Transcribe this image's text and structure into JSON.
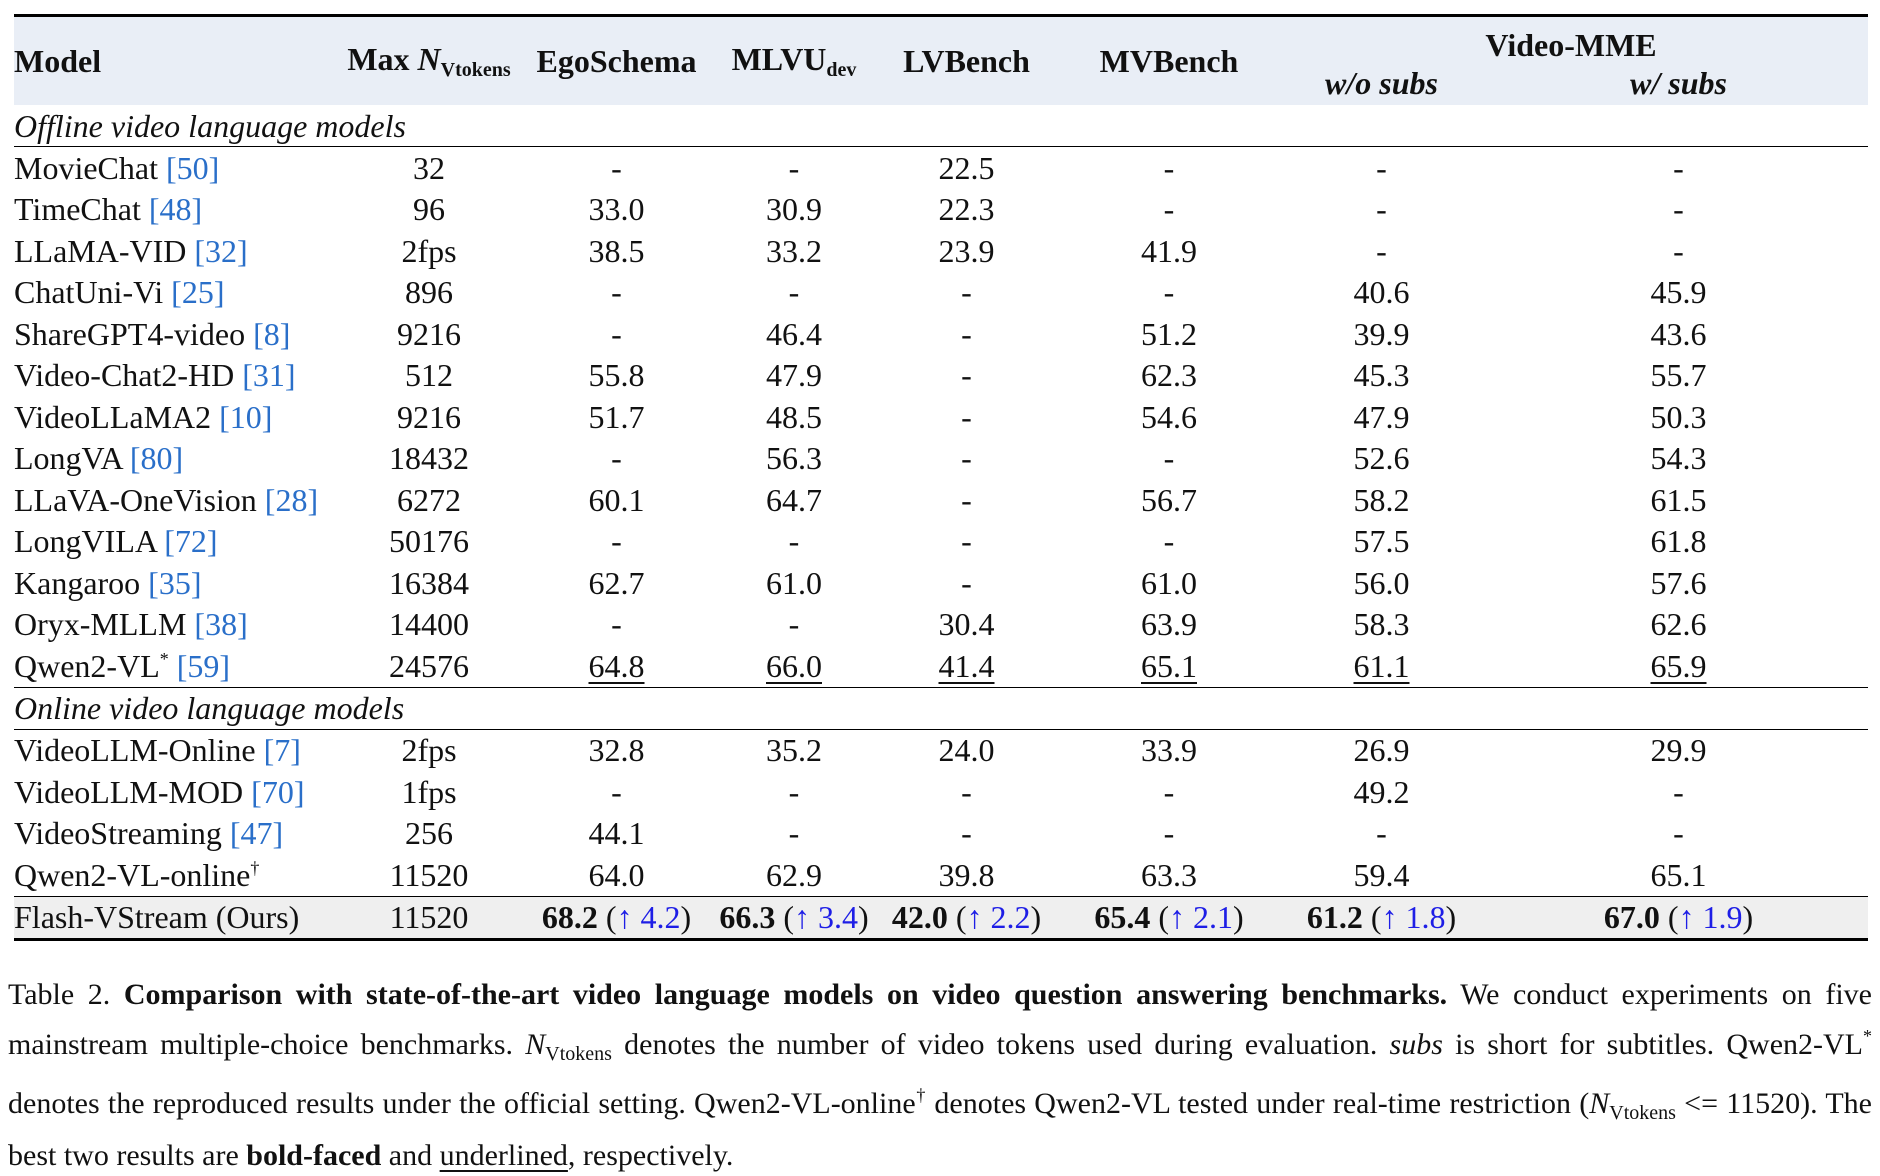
{
  "table": {
    "headers": {
      "model": "Model",
      "max_tokens_prefix": "Max ",
      "n": "N",
      "vtokens": "Vtokens",
      "egoschema": "EgoSchema",
      "mlvu": "MLVU",
      "mlvu_sub": "dev",
      "lvbench": "LVBench",
      "mvbench": "MVBench",
      "videomme": "Video-MME",
      "wo_subs": "w/o subs",
      "w_subs": "w/ subs"
    },
    "sections": [
      {
        "title": "Offline video language models",
        "rows": [
          {
            "name": "MovieChat ",
            "cite": "[50]",
            "sup": "",
            "tokens": "32",
            "ego": "-",
            "mlvu": "-",
            "lvb": "22.5",
            "mvb": "-",
            "wo": "-",
            "w": "-"
          },
          {
            "name": "TimeChat ",
            "cite": "[48]",
            "sup": "",
            "tokens": "96",
            "ego": "33.0",
            "mlvu": "30.9",
            "lvb": "22.3",
            "mvb": "-",
            "wo": "-",
            "w": "-"
          },
          {
            "name": "LLaMA-VID ",
            "cite": "[32]",
            "sup": "",
            "tokens": "2fps",
            "ego": "38.5",
            "mlvu": "33.2",
            "lvb": "23.9",
            "mvb": "41.9",
            "wo": "-",
            "w": "-"
          },
          {
            "name": "ChatUni-Vi ",
            "cite": "[25]",
            "sup": "",
            "tokens": "896",
            "ego": "-",
            "mlvu": "-",
            "lvb": "-",
            "mvb": "-",
            "wo": "40.6",
            "w": "45.9"
          },
          {
            "name": "ShareGPT4-video ",
            "cite": "[8]",
            "sup": "",
            "tokens": "9216",
            "ego": "-",
            "mlvu": "46.4",
            "lvb": "-",
            "mvb": "51.2",
            "wo": "39.9",
            "w": "43.6"
          },
          {
            "name": "Video-Chat2-HD ",
            "cite": "[31]",
            "sup": "",
            "tokens": "512",
            "ego": "55.8",
            "mlvu": "47.9",
            "lvb": "-",
            "mvb": "62.3",
            "wo": "45.3",
            "w": "55.7"
          },
          {
            "name": "VideoLLaMA2 ",
            "cite": "[10]",
            "sup": "",
            "tokens": "9216",
            "ego": "51.7",
            "mlvu": "48.5",
            "lvb": "-",
            "mvb": "54.6",
            "wo": "47.9",
            "w": "50.3"
          },
          {
            "name": "LongVA ",
            "cite": "[80]",
            "sup": "",
            "tokens": "18432",
            "ego": "-",
            "mlvu": "56.3",
            "lvb": "-",
            "mvb": "-",
            "wo": "52.6",
            "w": "54.3"
          },
          {
            "name": "LLaVA-OneVision ",
            "cite": "[28]",
            "sup": "",
            "tokens": "6272",
            "ego": "60.1",
            "mlvu": "64.7",
            "lvb": "-",
            "mvb": "56.7",
            "wo": "58.2",
            "w": "61.5"
          },
          {
            "name": "LongVILA ",
            "cite": "[72]",
            "sup": "",
            "tokens": "50176",
            "ego": "-",
            "mlvu": "-",
            "lvb": "-",
            "mvb": "-",
            "wo": "57.5",
            "w": "61.8"
          },
          {
            "name": "Kangaroo ",
            "cite": "[35]",
            "sup": "",
            "tokens": "16384",
            "ego": "62.7",
            "mlvu": "61.0",
            "lvb": "-",
            "mvb": "61.0",
            "wo": "56.0",
            "w": "57.6"
          },
          {
            "name": "Oryx-MLLM ",
            "cite": "[38]",
            "sup": "",
            "tokens": "14400",
            "ego": "-",
            "mlvu": "-",
            "lvb": "30.4",
            "mvb": "63.9",
            "wo": "58.3",
            "w": "62.6"
          },
          {
            "name": "Qwen2-VL",
            "cite": "[59]",
            "sup": "*",
            "tokens": "24576",
            "ego": "64.8",
            "mlvu": "66.0",
            "lvb": "41.4",
            "mvb": "65.1",
            "wo": "61.1",
            "w": "65.9"
          }
        ]
      },
      {
        "title": "Online video language models",
        "rows": [
          {
            "name": "VideoLLM-Online ",
            "cite": "[7]",
            "sup": "",
            "tokens": "2fps",
            "ego": "32.8",
            "mlvu": "35.2",
            "lvb": "24.0",
            "mvb": "33.9",
            "wo": "26.9",
            "w": "29.9"
          },
          {
            "name": "VideoLLM-MOD ",
            "cite": "[70]",
            "sup": "",
            "tokens": "1fps",
            "ego": "-",
            "mlvu": "-",
            "lvb": "-",
            "mvb": "-",
            "wo": "49.2",
            "w": "-"
          },
          {
            "name": "VideoStreaming ",
            "cite": "[47]",
            "sup": "",
            "tokens": "256",
            "ego": "44.1",
            "mlvu": "-",
            "lvb": "-",
            "mvb": "-",
            "wo": "-",
            "w": "-"
          },
          {
            "name": "Qwen2-VL-online",
            "cite": "",
            "sup": "†",
            "tokens": "11520",
            "ego": "64.0",
            "mlvu": "62.9",
            "lvb": "39.8",
            "mvb": "63.3",
            "wo": "59.4",
            "w": "65.1"
          }
        ]
      }
    ],
    "ours": {
      "name": "Flash-VStream (Ours)",
      "tokens": "11520",
      "ego": "68.2",
      "ego_d": "↑ 4.2",
      "mlvu": "66.3",
      "mlvu_d": "↑ 3.4",
      "lvb": "42.0",
      "lvb_d": "↑ 2.2",
      "mvb": "65.4",
      "mvb_d": "↑ 2.1",
      "wo": "61.2",
      "wo_d": "↑ 1.8",
      "w": "67.0",
      "w_d": "↑ 1.9"
    }
  },
  "caption": {
    "label": "Table 2. ",
    "bold": "Comparison with state-of-the-art video language models on video question answering benchmarks.",
    "t1": " We conduct experiments on five mainstream multiple-choice benchmarks. ",
    "n": "N",
    "vtokens": "Vtokens",
    "t2": " denotes the number of video tokens used during evaluation. ",
    "subs": "subs",
    "t3": " is short for subtitles. Qwen2-VL",
    "star": "*",
    "t4": " denotes the reproduced results under the official setting. Qwen2-VL-online",
    "dagger": "†",
    "t5": " denotes Qwen2-VL tested under real-time restriction (",
    "t6": " <= 11520). The best two results are ",
    "boldfaced": "bold-faced",
    "t7": " and ",
    "underlined": "underlined",
    "t8": ", respectively."
  }
}
